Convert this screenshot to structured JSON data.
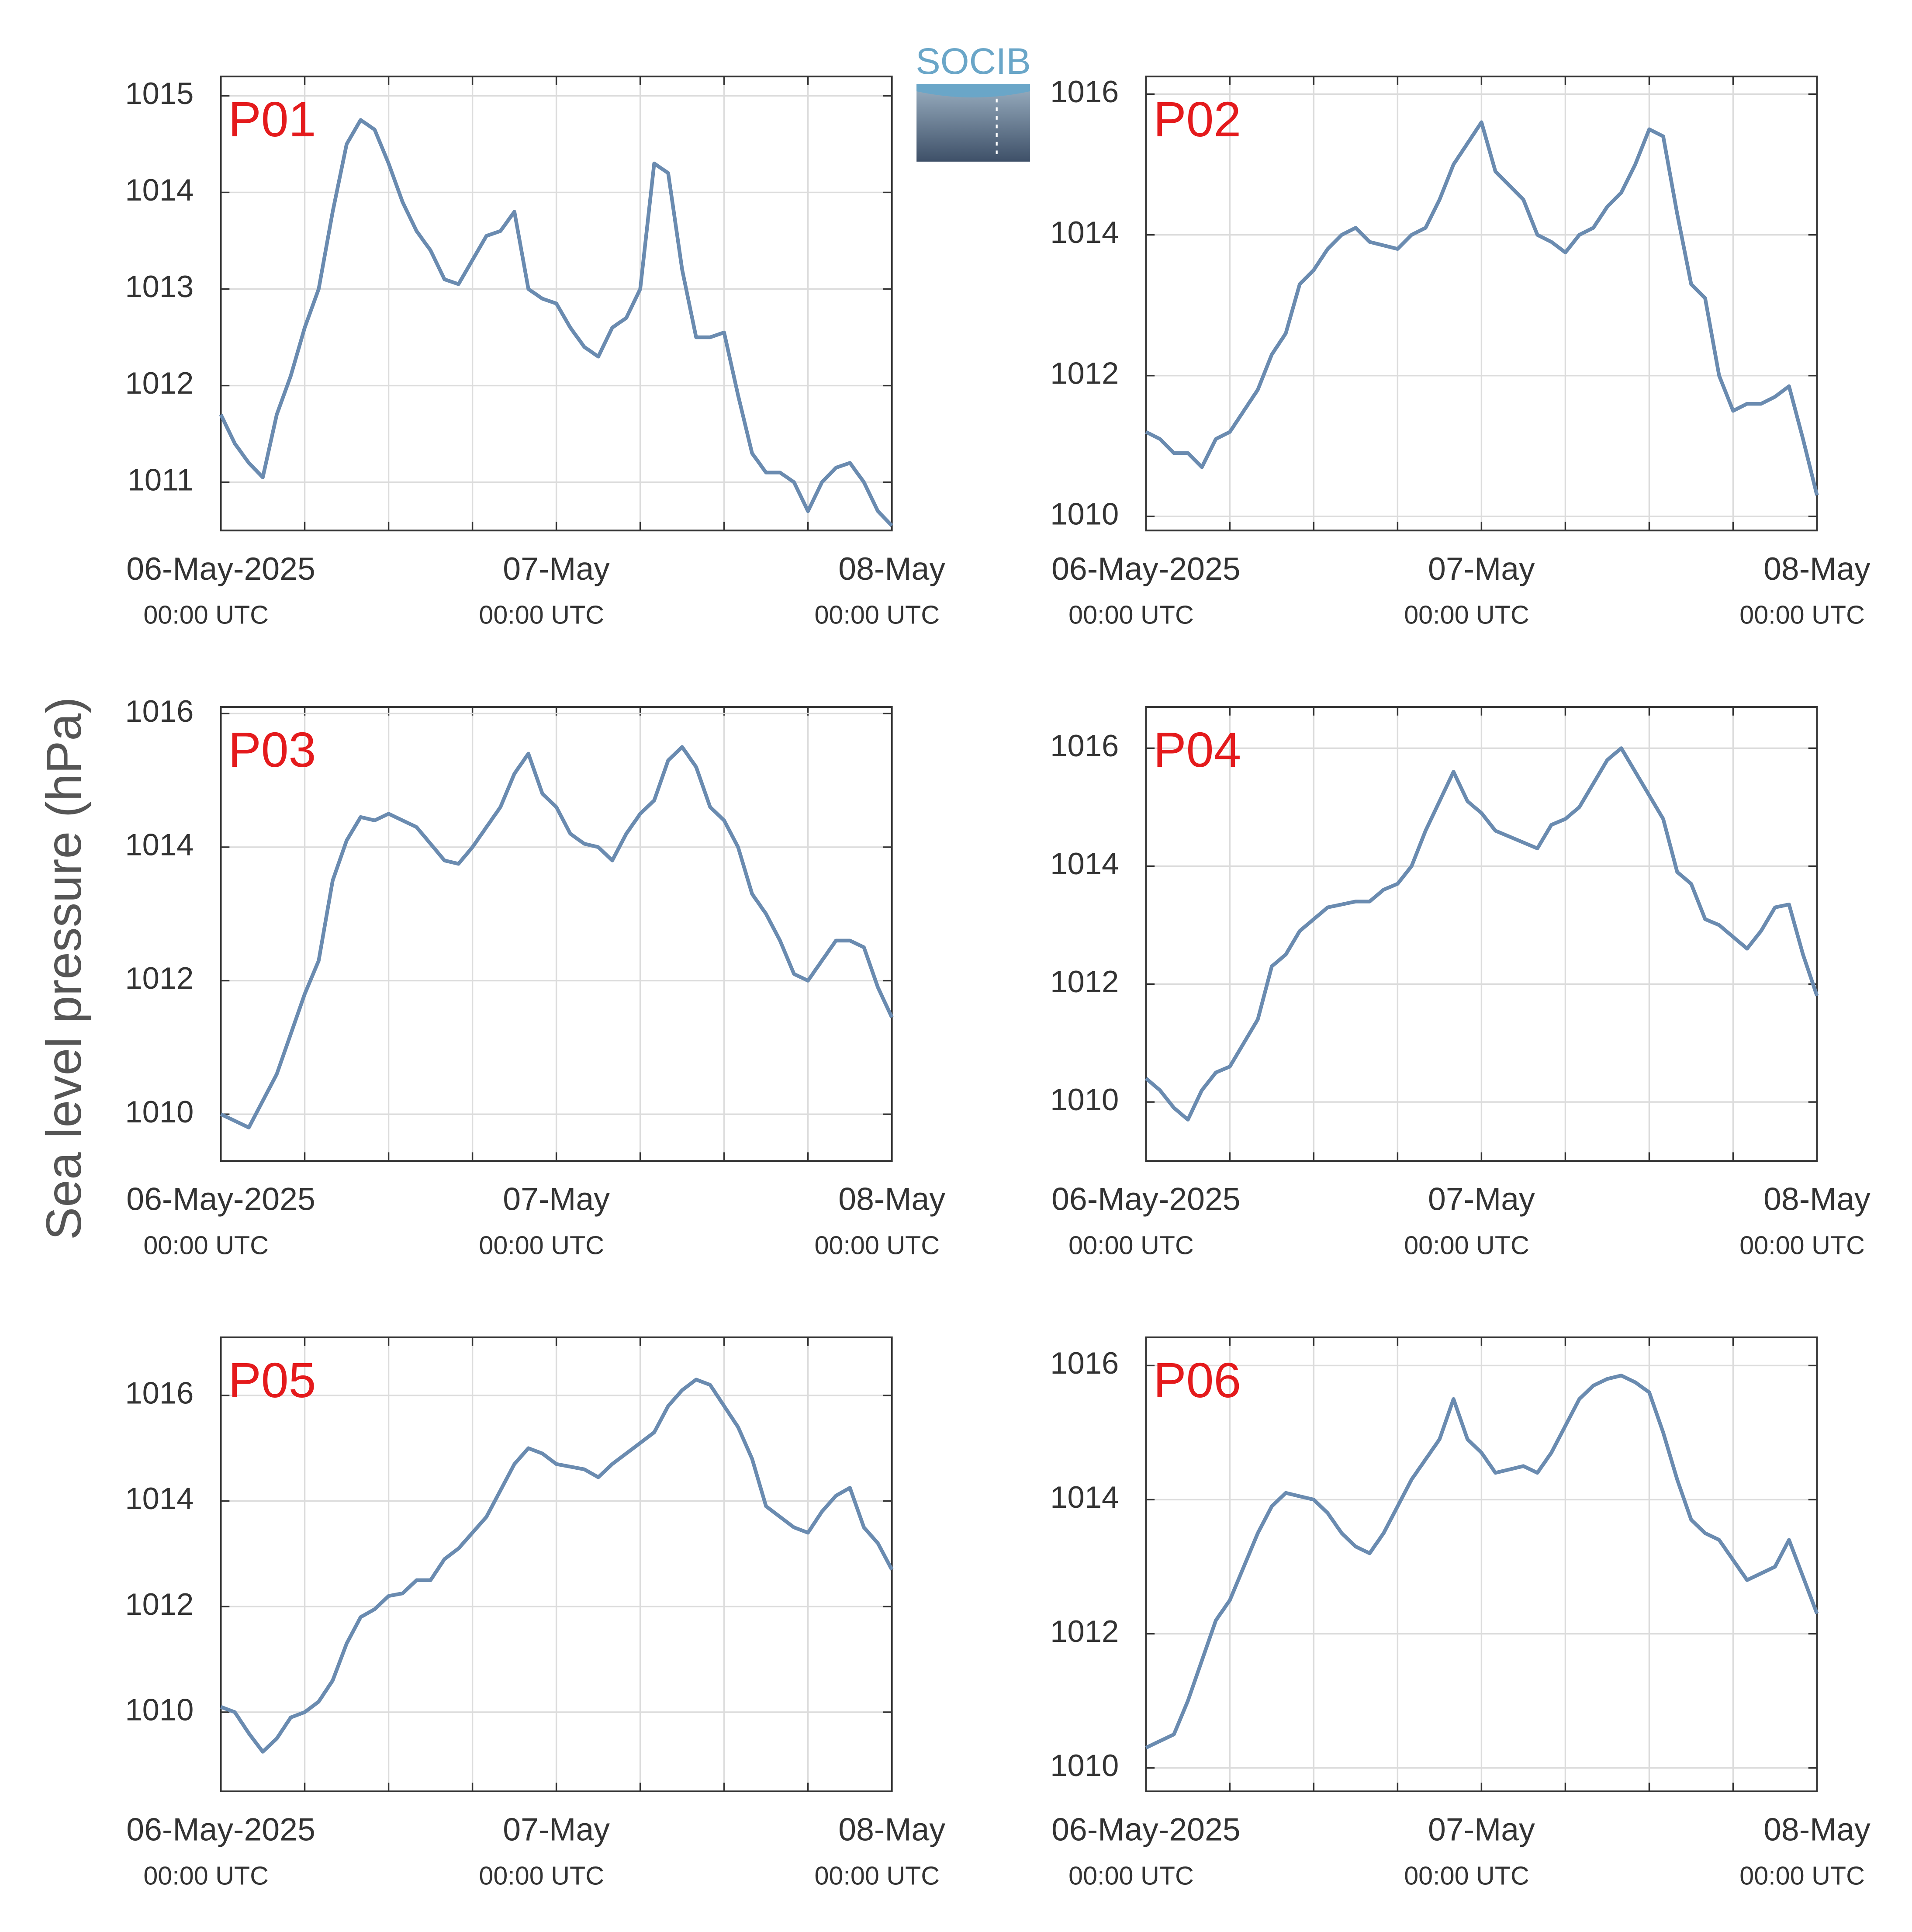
{
  "figure": {
    "ylabel": "Sea level pressure (hPa)",
    "logo": "SOCIB"
  },
  "chart_data": [
    {
      "type": "line",
      "title": "P01",
      "color": "#6a8bb0",
      "grid": true,
      "x": [
        0,
        1,
        2,
        3,
        4,
        5,
        6,
        7,
        8,
        9,
        10,
        11,
        12,
        13,
        14,
        15,
        16,
        17,
        18,
        19,
        20,
        21,
        22,
        23,
        24,
        25,
        26,
        27,
        28,
        29,
        30,
        31,
        32,
        33,
        34,
        35,
        36,
        37,
        38,
        39,
        40,
        41,
        42,
        43,
        44,
        45,
        46,
        47,
        48
      ],
      "values": [
        1011.7,
        1011.4,
        1011.2,
        1011.05,
        1011.7,
        1012.1,
        1012.6,
        1013.0,
        1013.8,
        1014.5,
        1014.75,
        1014.65,
        1014.3,
        1013.9,
        1013.6,
        1013.4,
        1013.1,
        1013.05,
        1013.3,
        1013.55,
        1013.6,
        1013.8,
        1013.0,
        1012.9,
        1012.85,
        1012.6,
        1012.4,
        1012.3,
        1012.6,
        1012.7,
        1013.0,
        1014.3,
        1014.2,
        1013.2,
        1012.5,
        1012.5,
        1012.55,
        1011.9,
        1011.3,
        1011.1,
        1011.1,
        1011.0,
        1010.7,
        1011.0,
        1011.15,
        1011.2,
        1011.0,
        1010.7,
        1010.55
      ],
      "xlim": [
        0,
        48
      ],
      "ylim": [
        1010.5,
        1015.2
      ],
      "yticks": [
        1011,
        1012,
        1013,
        1014,
        1015
      ],
      "xticks": [
        {
          "value": 0,
          "label": [
            "06-May-2025",
            "00:00 UTC"
          ]
        },
        {
          "value": 24,
          "label": [
            "07-May",
            "00:00 UTC"
          ]
        },
        {
          "value": 48,
          "label": [
            "08-May",
            "00:00 UTC"
          ]
        }
      ],
      "xminorticks": [
        6,
        12,
        18,
        30,
        36,
        42
      ]
    },
    {
      "type": "line",
      "title": "P02",
      "color": "#6a8bb0",
      "grid": true,
      "x": [
        0,
        1,
        2,
        3,
        4,
        5,
        6,
        7,
        8,
        9,
        10,
        11,
        12,
        13,
        14,
        15,
        16,
        17,
        18,
        19,
        20,
        21,
        22,
        23,
        24,
        25,
        26,
        27,
        28,
        29,
        30,
        31,
        32,
        33,
        34,
        35,
        36,
        37,
        38,
        39,
        40,
        41,
        42,
        43,
        44,
        45,
        46,
        47,
        48
      ],
      "values": [
        1011.2,
        1011.1,
        1010.9,
        1010.9,
        1010.7,
        1011.1,
        1011.2,
        1011.5,
        1011.8,
        1012.3,
        1012.6,
        1013.3,
        1013.5,
        1013.8,
        1014.0,
        1014.1,
        1013.9,
        1013.85,
        1013.8,
        1014.0,
        1014.1,
        1014.5,
        1015.0,
        1015.3,
        1015.6,
        1014.9,
        1014.7,
        1014.5,
        1014.0,
        1013.9,
        1013.75,
        1014.0,
        1014.1,
        1014.4,
        1014.6,
        1015.0,
        1015.5,
        1015.4,
        1014.3,
        1013.3,
        1013.1,
        1012.0,
        1011.5,
        1011.6,
        1011.6,
        1011.7,
        1011.85,
        1011.1,
        1010.3
      ],
      "xlim": [
        0,
        48
      ],
      "ylim": [
        1009.8,
        1016.25
      ],
      "yticks": [
        1010,
        1012,
        1014,
        1016
      ],
      "xticks": [
        {
          "value": 0,
          "label": [
            "06-May-2025",
            "00:00 UTC"
          ]
        },
        {
          "value": 24,
          "label": [
            "07-May",
            "00:00 UTC"
          ]
        },
        {
          "value": 48,
          "label": [
            "08-May",
            "00:00 UTC"
          ]
        }
      ],
      "xminorticks": [
        6,
        12,
        18,
        30,
        36,
        42
      ]
    },
    {
      "type": "line",
      "title": "P03",
      "color": "#6a8bb0",
      "grid": true,
      "x": [
        0,
        1,
        2,
        3,
        4,
        5,
        6,
        7,
        8,
        9,
        10,
        11,
        12,
        13,
        14,
        15,
        16,
        17,
        18,
        19,
        20,
        21,
        22,
        23,
        24,
        25,
        26,
        27,
        28,
        29,
        30,
        31,
        32,
        33,
        34,
        35,
        36,
        37,
        38,
        39,
        40,
        41,
        42,
        43,
        44,
        45,
        46,
        47,
        48
      ],
      "values": [
        1010.0,
        1009.9,
        1009.8,
        1010.2,
        1010.6,
        1011.2,
        1011.8,
        1012.3,
        1013.5,
        1014.1,
        1014.45,
        1014.4,
        1014.5,
        1014.4,
        1014.3,
        1014.05,
        1013.8,
        1013.75,
        1014.0,
        1014.3,
        1014.6,
        1015.1,
        1015.4,
        1014.8,
        1014.6,
        1014.2,
        1014.05,
        1014.0,
        1013.8,
        1014.2,
        1014.5,
        1014.7,
        1015.3,
        1015.5,
        1015.2,
        1014.6,
        1014.4,
        1014.0,
        1013.3,
        1013.0,
        1012.6,
        1012.1,
        1012.0,
        1012.3,
        1012.6,
        1012.6,
        1012.5,
        1011.9,
        1011.45
      ],
      "xlim": [
        0,
        48
      ],
      "ylim": [
        1009.3,
        1016.1
      ],
      "yticks": [
        1010,
        1012,
        1014,
        1016
      ],
      "xticks": [
        {
          "value": 0,
          "label": [
            "06-May-2025",
            "00:00 UTC"
          ]
        },
        {
          "value": 24,
          "label": [
            "07-May",
            "00:00 UTC"
          ]
        },
        {
          "value": 48,
          "label": [
            "08-May",
            "00:00 UTC"
          ]
        }
      ],
      "xminorticks": [
        6,
        12,
        18,
        30,
        36,
        42
      ]
    },
    {
      "type": "line",
      "title": "P04",
      "color": "#6a8bb0",
      "grid": true,
      "x": [
        0,
        1,
        2,
        3,
        4,
        5,
        6,
        7,
        8,
        9,
        10,
        11,
        12,
        13,
        14,
        15,
        16,
        17,
        18,
        19,
        20,
        21,
        22,
        23,
        24,
        25,
        26,
        27,
        28,
        29,
        30,
        31,
        32,
        33,
        34,
        35,
        36,
        37,
        38,
        39,
        40,
        41,
        42,
        43,
        44,
        45,
        46,
        47,
        48
      ],
      "values": [
        1010.4,
        1010.2,
        1009.9,
        1009.7,
        1010.2,
        1010.5,
        1010.6,
        1011.0,
        1011.4,
        1012.3,
        1012.5,
        1012.9,
        1013.1,
        1013.3,
        1013.35,
        1013.4,
        1013.4,
        1013.6,
        1013.7,
        1014.0,
        1014.6,
        1015.1,
        1015.6,
        1015.1,
        1014.9,
        1014.6,
        1014.5,
        1014.4,
        1014.3,
        1014.7,
        1014.8,
        1015.0,
        1015.4,
        1015.8,
        1016.0,
        1015.6,
        1015.2,
        1014.8,
        1013.9,
        1013.7,
        1013.1,
        1013.0,
        1012.8,
        1012.6,
        1012.9,
        1013.3,
        1013.35,
        1012.5,
        1011.8
      ],
      "xlim": [
        0,
        48
      ],
      "ylim": [
        1009.0,
        1016.7
      ],
      "yticks": [
        1010,
        1012,
        1014,
        1016
      ],
      "xticks": [
        {
          "value": 0,
          "label": [
            "06-May-2025",
            "00:00 UTC"
          ]
        },
        {
          "value": 24,
          "label": [
            "07-May",
            "00:00 UTC"
          ]
        },
        {
          "value": 48,
          "label": [
            "08-May",
            "00:00 UTC"
          ]
        }
      ],
      "xminorticks": [
        6,
        12,
        18,
        30,
        36,
        42
      ]
    },
    {
      "type": "line",
      "title": "P05",
      "color": "#6a8bb0",
      "grid": true,
      "x": [
        0,
        1,
        2,
        3,
        4,
        5,
        6,
        7,
        8,
        9,
        10,
        11,
        12,
        13,
        14,
        15,
        16,
        17,
        18,
        19,
        20,
        21,
        22,
        23,
        24,
        25,
        26,
        27,
        28,
        29,
        30,
        31,
        32,
        33,
        34,
        35,
        36,
        37,
        38,
        39,
        40,
        41,
        42,
        43,
        44,
        45,
        46,
        47,
        48
      ],
      "values": [
        1010.1,
        1010.0,
        1009.6,
        1009.25,
        1009.5,
        1009.9,
        1010.0,
        1010.2,
        1010.6,
        1011.3,
        1011.8,
        1011.95,
        1012.2,
        1012.25,
        1012.5,
        1012.5,
        1012.9,
        1013.1,
        1013.4,
        1013.7,
        1014.2,
        1014.7,
        1015.0,
        1014.9,
        1014.7,
        1014.65,
        1014.6,
        1014.45,
        1014.7,
        1014.9,
        1015.1,
        1015.3,
        1015.8,
        1016.1,
        1016.3,
        1016.2,
        1015.8,
        1015.4,
        1014.8,
        1013.9,
        1013.7,
        1013.5,
        1013.4,
        1013.8,
        1014.1,
        1014.25,
        1013.5,
        1013.2,
        1012.7
      ],
      "xlim": [
        0,
        48
      ],
      "ylim": [
        1008.5,
        1017.1
      ],
      "yticks": [
        1010,
        1012,
        1014,
        1016
      ],
      "xticks": [
        {
          "value": 0,
          "label": [
            "06-May-2025",
            "00:00 UTC"
          ]
        },
        {
          "value": 24,
          "label": [
            "07-May",
            "00:00 UTC"
          ]
        },
        {
          "value": 48,
          "label": [
            "08-May",
            "00:00 UTC"
          ]
        }
      ],
      "xminorticks": [
        6,
        12,
        18,
        30,
        36,
        42
      ]
    },
    {
      "type": "line",
      "title": "P06",
      "color": "#6a8bb0",
      "grid": true,
      "x": [
        0,
        1,
        2,
        3,
        4,
        5,
        6,
        7,
        8,
        9,
        10,
        11,
        12,
        13,
        14,
        15,
        16,
        17,
        18,
        19,
        20,
        21,
        22,
        23,
        24,
        25,
        26,
        27,
        28,
        29,
        30,
        31,
        32,
        33,
        34,
        35,
        36,
        37,
        38,
        39,
        40,
        41,
        42,
        43,
        44,
        45,
        46,
        47,
        48
      ],
      "values": [
        1010.3,
        1010.4,
        1010.5,
        1011.0,
        1011.6,
        1012.2,
        1012.5,
        1013.0,
        1013.5,
        1013.9,
        1014.1,
        1014.05,
        1014.0,
        1013.8,
        1013.5,
        1013.3,
        1013.2,
        1013.5,
        1013.9,
        1014.3,
        1014.6,
        1014.9,
        1015.5,
        1014.9,
        1014.7,
        1014.4,
        1014.45,
        1014.5,
        1014.4,
        1014.7,
        1015.1,
        1015.5,
        1015.7,
        1015.8,
        1015.85,
        1015.75,
        1015.6,
        1015.0,
        1014.3,
        1013.7,
        1013.5,
        1013.4,
        1013.1,
        1012.8,
        1012.9,
        1013.0,
        1013.4,
        1012.85,
        1012.3
      ],
      "xlim": [
        0,
        48
      ],
      "ylim": [
        1009.65,
        1016.42
      ],
      "yticks": [
        1010,
        1012,
        1014,
        1016
      ],
      "xticks": [
        {
          "value": 0,
          "label": [
            "06-May-2025",
            "00:00 UTC"
          ]
        },
        {
          "value": 24,
          "label": [
            "07-May",
            "00:00 UTC"
          ]
        },
        {
          "value": 48,
          "label": [
            "08-May",
            "00:00 UTC"
          ]
        }
      ],
      "xminorticks": [
        6,
        12,
        18,
        30,
        36,
        42
      ]
    }
  ]
}
